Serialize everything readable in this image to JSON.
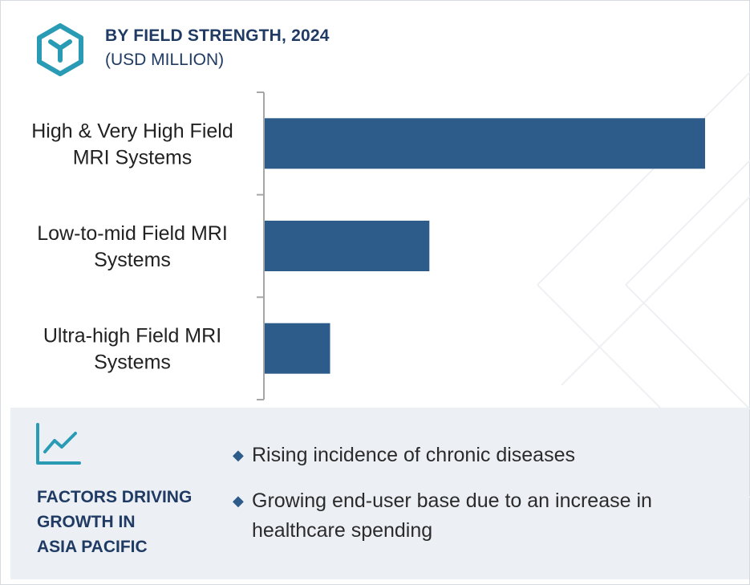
{
  "header": {
    "title": "BY FIELD STRENGTH, 2024",
    "subtitle": "(USD MILLION)"
  },
  "chart_data": {
    "type": "bar",
    "orientation": "horizontal",
    "categories": [
      "High & Very High Field MRI Systems",
      "Low-to-mid Field MRI Systems",
      "Ultra-high Field MRI Systems"
    ],
    "category_lines": [
      [
        "High & Very High Field",
        "MRI Systems"
      ],
      [
        "Low-to-mid Field MRI",
        "Systems"
      ],
      [
        "Ultra-high Field MRI",
        "Systems"
      ]
    ],
    "values": [
      100,
      37.5,
      15
    ],
    "xlim": [
      0,
      100
    ],
    "title": "BY FIELD STRENGTH, 2024",
    "unit": "(USD MILLION)",
    "grid": false,
    "legend": "none",
    "bar_color": "#2e5c8a"
  },
  "factors": {
    "title_lines": [
      "FACTORS DRIVING",
      "GROWTH IN",
      "ASIA PACIFIC"
    ],
    "bullets": [
      "Rising incidence of chronic diseases",
      "Growing end-user base due to an increase in healthcare spending"
    ],
    "icon": "growth-chart-icon"
  },
  "colors": {
    "accent": "#2a9bb5",
    "navy": "#1f3a63",
    "bar": "#2e5c8a",
    "panel": "#eceff4"
  }
}
